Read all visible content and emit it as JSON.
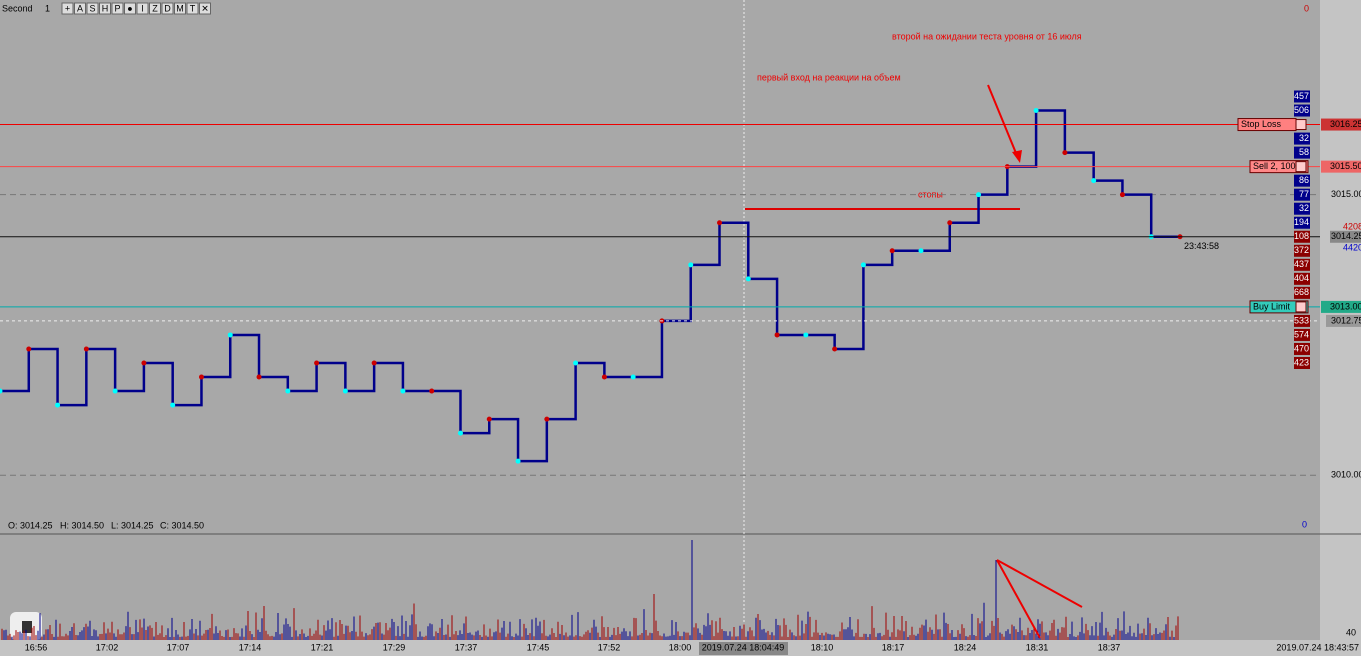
{
  "toolbar": {
    "instrument": "Second",
    "period": "1",
    "buttons": [
      "+",
      "A",
      "S",
      "H",
      "P",
      "●",
      "I",
      "Z",
      "D",
      "M",
      "T",
      "✕"
    ]
  },
  "ohlc": {
    "open": "O: 3014.25",
    "high": "H: 3014.50",
    "low": "L: 3014.25",
    "close": "C: 3014.50"
  },
  "annotations": {
    "second_entry": "второй на ожидании теста уровня от 16 июля",
    "first_entry": "первый вход на реакции на объем",
    "stops": "стопы"
  },
  "chart_data": {
    "type": "line",
    "ylim": [
      3008.97,
      3018.47
    ],
    "yticks": [
      {
        "value": 3015,
        "label": "3015.00"
      },
      {
        "value": 3010,
        "label": "3010.00"
      }
    ],
    "values": [
      3011.5,
      3012.25,
      3011.25,
      3012.25,
      3011.5,
      3012,
      3011.25,
      3011.75,
      3012.5,
      3011.75,
      3011.5,
      3012,
      3011.5,
      3012,
      3011.5,
      3011.5,
      3010.75,
      3011,
      3010.25,
      3011,
      3012,
      3011.75,
      3011.75,
      3012.75,
      3013.75,
      3014.5,
      3013.5,
      3012.5,
      3012.5,
      3012.25,
      3013.75,
      3014,
      3014,
      3014.5,
      3015,
      3015.5,
      3016.5,
      3015.75,
      3015.25,
      3015,
      3014.25,
      3014.25
    ],
    "color": "#00008b"
  },
  "orders": [
    {
      "name": "Stop Loss",
      "price": 3016.25,
      "price_label": "3016.25"
    },
    {
      "name": "Sell 2, 100",
      "price": 3015.5,
      "price_label": "3015.50"
    },
    {
      "name": "Buy Limit",
      "price": 3013,
      "price_label": "3013.00"
    }
  ],
  "last_price": {
    "price": 3014.25,
    "label": "3014.25",
    "timer": "23:43:58"
  },
  "bid_ask": {
    "ask": "4208",
    "bid": "4420"
  },
  "marker_price": {
    "price": 3012.75,
    "label": "3012.75"
  },
  "ladder": {
    "start": 3016.75,
    "step": 0.25,
    "labels": [
      "457",
      "506",
      null,
      "32",
      "58",
      null,
      "86",
      "77",
      "32",
      "194",
      "108",
      "372",
      "437",
      "404",
      "668",
      null,
      "533",
      "574",
      "470",
      "423"
    ]
  },
  "axis_zero": {
    "top": "0",
    "bottom": "0"
  },
  "volume_axis": {
    "label": "40"
  },
  "time_axis": {
    "labels": [
      "16:56",
      "17:02",
      "17:07",
      "17:14",
      "17:21",
      "17:29",
      "17:37",
      "17:45",
      "17:52",
      "18:00",
      "18:10",
      "18:17",
      "18:24",
      "18:31",
      "18:37"
    ],
    "cursor": "2019.07.24 18:04:49",
    "end": "2019.07.24 18:43:57"
  }
}
